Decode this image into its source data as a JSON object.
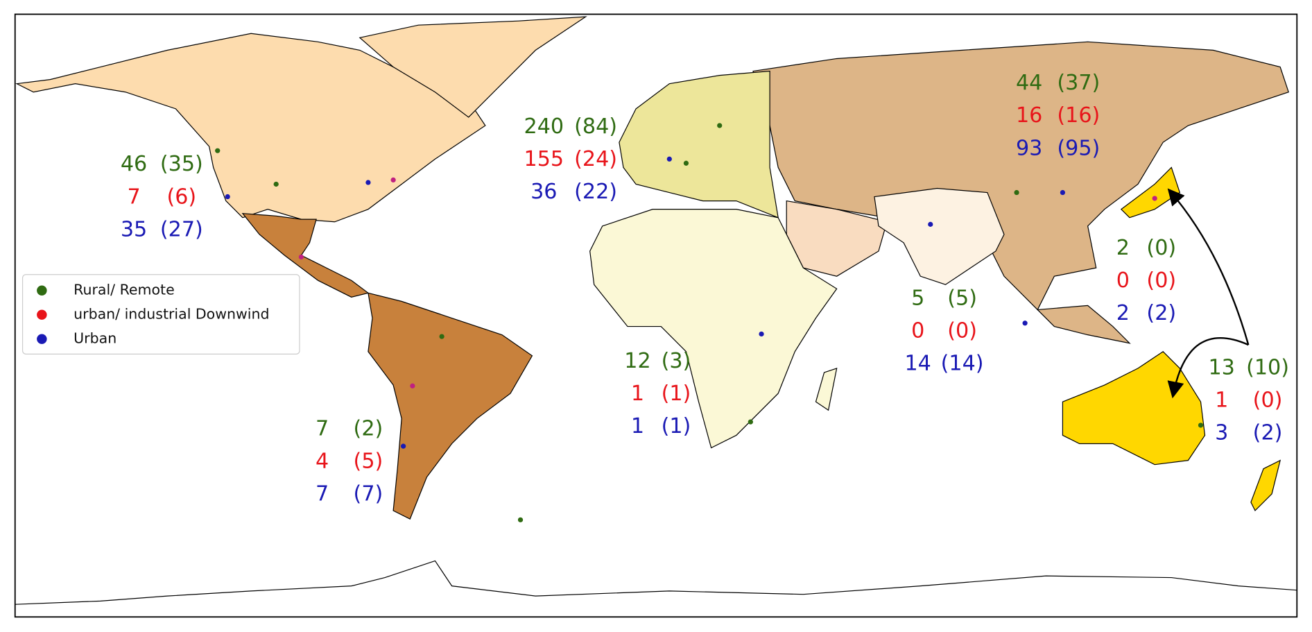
{
  "legend": [
    {
      "label": "Rural/ Remote",
      "color": "#2f6b12"
    },
    {
      "label": "urban/ industrial Downwind",
      "color": "#e8141a"
    },
    {
      "label": "Urban",
      "color": "#1a1ab4"
    }
  ],
  "regions": [
    {
      "rows": [
        [
          "46",
          "(35)"
        ],
        [
          "7",
          "(6)"
        ],
        [
          "35",
          "(27)"
        ]
      ]
    },
    {
      "rows": [
        [
          "240",
          "(84)"
        ],
        [
          "155",
          "(24)"
        ],
        [
          "36",
          "(22)"
        ]
      ]
    },
    {
      "rows": [
        [
          "44",
          "(37)"
        ],
        [
          "16",
          "(16)"
        ],
        [
          "93",
          "(95)"
        ]
      ]
    },
    {
      "rows": [
        [
          "2",
          "(0)"
        ],
        [
          "0",
          "(0)"
        ],
        [
          "2",
          "(2)"
        ]
      ]
    },
    {
      "rows": [
        [
          "5",
          "(5)"
        ],
        [
          "0",
          "(0)"
        ],
        [
          "14",
          "(14)"
        ]
      ]
    },
    {
      "rows": [
        [
          "12",
          "(3)"
        ],
        [
          "1",
          "(1)"
        ],
        [
          "1",
          "(1)"
        ]
      ]
    },
    {
      "rows": [
        [
          "13",
          "(10)"
        ],
        [
          "1",
          "(0)"
        ],
        [
          "3",
          "(2)"
        ]
      ]
    },
    {
      "rows": [
        [
          "7",
          "(2)"
        ],
        [
          "4",
          "(5)"
        ],
        [
          "7",
          "(7)"
        ]
      ]
    }
  ]
}
